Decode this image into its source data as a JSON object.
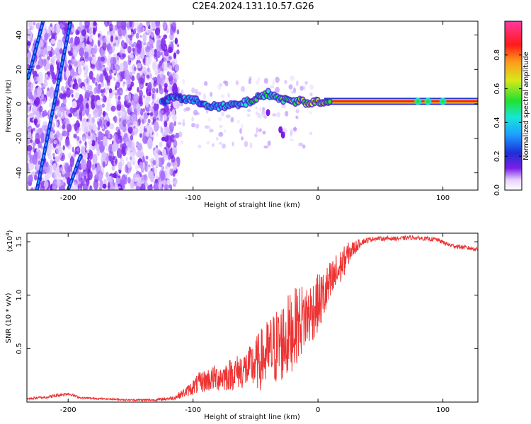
{
  "page": {
    "title": "C2E4.2024.131.10.57.G26"
  },
  "chart_data": [
    {
      "type": "heatmap",
      "id": "spectrogram",
      "title": "",
      "xlabel": "Height of straight line (km)",
      "ylabel": "Frequency (Hz)",
      "xlim": [
        -233,
        128
      ],
      "ylim": [
        -50,
        48
      ],
      "xticks": [
        -200,
        -100,
        0,
        100
      ],
      "yticks": [
        -40,
        -20,
        0,
        20,
        40
      ],
      "colorbar": {
        "label": "Normalized spectral amplitude",
        "range": [
          0,
          1
        ],
        "ticks": [
          0.0,
          0.2,
          0.4,
          0.6,
          0.8
        ],
        "colormap": [
          "#ffffff",
          "#e6d2ff",
          "#7a1fe6",
          "#1c2fd6",
          "#1ea0ff",
          "#16e6d8",
          "#22e030",
          "#d8e81a",
          "#ff9a1a",
          "#ff1a1a",
          "#ff3aa0"
        ]
      },
      "features": {
        "noise_region_x": [
          -233,
          -112
        ],
        "main_ridge": [
          {
            "x": -120,
            "y": 5
          },
          {
            "x": -100,
            "y": 2
          },
          {
            "x": -80,
            "y": -2
          },
          {
            "x": -60,
            "y": 0
          },
          {
            "x": -40,
            "y": 6
          },
          {
            "x": -25,
            "y": 2
          },
          {
            "x": -10,
            "y": 1
          },
          {
            "x": 10,
            "y": 1.5
          },
          {
            "x": 128,
            "y": 1.5
          }
        ],
        "diagonal_streaks": [
          {
            "x_start": -225,
            "y_start": -50,
            "x_end": -198,
            "y_end": 48
          },
          {
            "x_start": -232,
            "y_start": 15,
            "x_end": -220,
            "y_end": 48
          },
          {
            "x_start": -200,
            "y_start": -50,
            "x_end": -190,
            "y_end": -30
          }
        ],
        "secondary_branch": [
          {
            "x": -40,
            "y": -5
          },
          {
            "x": -30,
            "y": -15
          },
          {
            "x": -28,
            "y": -18
          }
        ]
      }
    },
    {
      "type": "line",
      "id": "snr",
      "title": "",
      "xlabel": "Height of straight line (km)",
      "ylabel": "SNR (10 * v/v)",
      "y_multiplier_label": "(x10",
      "y_multiplier_exp": "4",
      "y_multiplier_close": ")",
      "xlim": [
        -233,
        128
      ],
      "ylim": [
        0.0,
        1.58
      ],
      "xticks": [
        -200,
        -100,
        0,
        100
      ],
      "yticks": [
        0.5,
        1.0,
        1.5
      ],
      "ytick_labels": [
        "0.5",
        "1.0",
        "1.5"
      ],
      "color": "#ee3333",
      "series": [
        {
          "x": [
            -233,
            -215,
            -200,
            -190,
            -170,
            -150,
            -130,
            -115,
            -105,
            -95,
            -85,
            -75,
            -65,
            -55,
            -45,
            -35,
            -25,
            -15,
            -5,
            5,
            15,
            25,
            35,
            45,
            55,
            65,
            75,
            85,
            95,
            105,
            115,
            128
          ],
          "values": [
            0.03,
            0.05,
            0.08,
            0.04,
            0.03,
            0.02,
            0.02,
            0.04,
            0.1,
            0.18,
            0.22,
            0.24,
            0.28,
            0.32,
            0.4,
            0.5,
            0.6,
            0.75,
            0.85,
            1.0,
            1.2,
            1.4,
            1.5,
            1.53,
            1.53,
            1.53,
            1.54,
            1.53,
            1.52,
            1.47,
            1.45,
            1.43
          ],
          "noise_amplitude": [
            0.01,
            0.015,
            0.015,
            0.01,
            0.008,
            0.008,
            0.01,
            0.02,
            0.05,
            0.1,
            0.12,
            0.14,
            0.16,
            0.2,
            0.3,
            0.36,
            0.4,
            0.35,
            0.3,
            0.25,
            0.2,
            0.1,
            0.03,
            0.02,
            0.02,
            0.02,
            0.02,
            0.02,
            0.02,
            0.02,
            0.02,
            0.02
          ]
        }
      ]
    }
  ]
}
